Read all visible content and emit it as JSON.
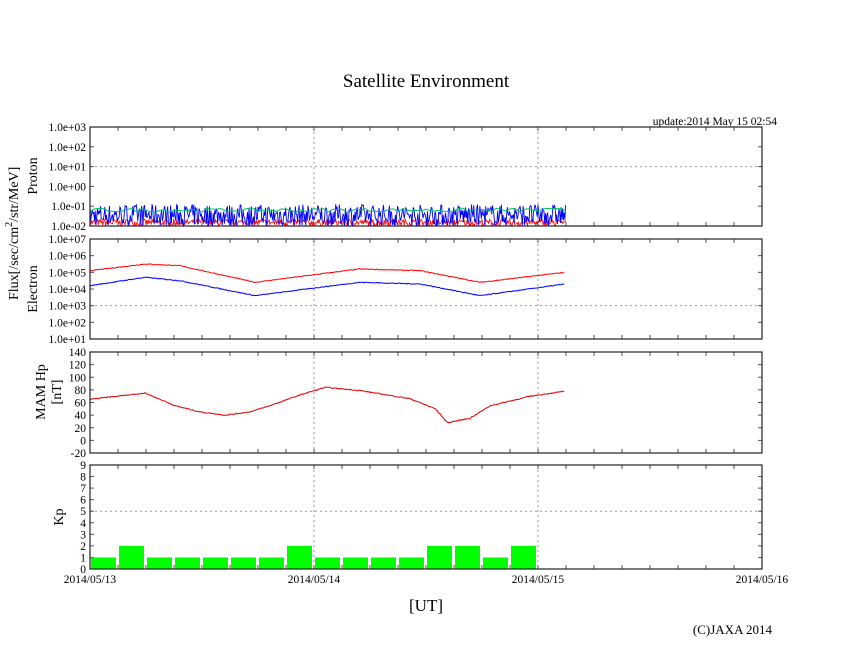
{
  "chart_data": [
    {
      "type": "line",
      "title": "Satellite Environment",
      "update": "update:2014 May 15 02:54",
      "panel": "Proton",
      "ylabel_shared": "Flux[/sec/cm",
      "ylabel_sup": "2",
      "ylabel_tail": "/str/MeV]",
      "yscale": "log",
      "ylim_log10": [
        -2,
        3
      ],
      "yticks": [
        "1.0e+03",
        "1.0e+02",
        "1.0e+01",
        "1.0e+00",
        "1.0e-01",
        "1.0e-02"
      ],
      "series": [
        {
          "name": "blue",
          "color": "#0000ff",
          "range_log10": [
            -2,
            -0.9
          ]
        },
        {
          "name": "green",
          "color": "#00c060",
          "mean_log10": -1.2
        },
        {
          "name": "red",
          "color": "#ff0000",
          "range_log10": [
            -2,
            -1.6
          ]
        }
      ],
      "data_hours": [
        0,
        51
      ]
    },
    {
      "type": "line",
      "panel": "Electron",
      "yscale": "log",
      "ylim_log10": [
        1,
        7
      ],
      "yticks": [
        "1.0e+07",
        "1.0e+06",
        "1.0e+05",
        "1.0e+04",
        "1.0e+03",
        "1.0e+02",
        "1.0e+01"
      ],
      "x_hours": [
        0,
        5.9,
        9.6,
        17.7,
        24.6,
        28.9,
        35.4,
        41.8,
        50.9
      ],
      "series": [
        {
          "name": "red",
          "color": "#ff0000",
          "log10": [
            5.1,
            5.5,
            5.4,
            4.4,
            4.9,
            5.2,
            5.1,
            4.4,
            5.0
          ]
        },
        {
          "name": "blue",
          "color": "#0000ff",
          "log10": [
            4.2,
            4.7,
            4.5,
            3.6,
            4.1,
            4.4,
            4.3,
            3.6,
            4.3
          ]
        }
      ]
    },
    {
      "type": "line",
      "panel": "MAM Hp",
      "unit": "[nT]",
      "ylim": [
        -20,
        140
      ],
      "yticks": [
        "140",
        "120",
        "100",
        "80",
        "60",
        "40",
        "20",
        "0",
        "-20"
      ],
      "x_hours": [
        0,
        5.9,
        9.1,
        11.8,
        14.5,
        17.1,
        19.3,
        22.5,
        25.2,
        28.9,
        34.3,
        37.0,
        38.3,
        40.7,
        42.9,
        47.2,
        50.9
      ],
      "series": [
        {
          "name": "Hp",
          "color": "#e00000",
          "values": [
            65,
            75,
            55,
            45,
            40,
            45,
            55,
            72,
            84,
            79,
            66,
            50,
            28,
            35,
            55,
            70,
            78
          ]
        }
      ]
    },
    {
      "type": "bar",
      "panel": "Kp",
      "ylim": [
        0,
        9
      ],
      "yticks": [
        "9",
        "8",
        "7",
        "6",
        "5",
        "4",
        "3",
        "2",
        "1",
        "0"
      ],
      "bar_hours": 3,
      "values": [
        1,
        2,
        1,
        1,
        1,
        1,
        1,
        2,
        1,
        1,
        1,
        1,
        2,
        2,
        1,
        2
      ],
      "color": "#00ff00"
    }
  ],
  "xticks": [
    "2014/05/13",
    "2014/05/14",
    "2014/05/15",
    "2014/05/16"
  ],
  "xlabel": "[UT]",
  "copyright": "(C)JAXA 2014"
}
